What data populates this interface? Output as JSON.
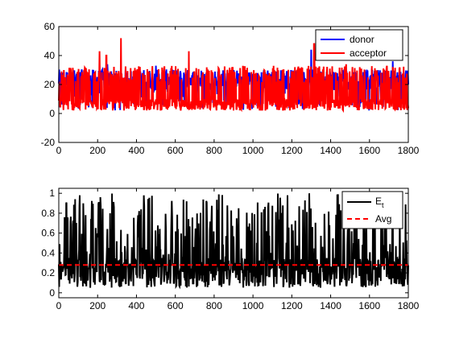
{
  "chart_data": [
    {
      "type": "line",
      "title": "",
      "xlabel": "",
      "ylabel": "",
      "xlim": [
        0,
        1800
      ],
      "ylim": [
        -20,
        60
      ],
      "x_ticks": [
        0,
        200,
        400,
        600,
        800,
        1000,
        1200,
        1400,
        1600,
        1800
      ],
      "y_ticks": [
        -20,
        0,
        20,
        40,
        60
      ],
      "legend": {
        "placement": "top-right"
      },
      "series": [
        {
          "name": "donor",
          "color": "#0000ff",
          "baseline": 22,
          "spread": 7,
          "peaks": [
            [
              250,
              34
            ],
            [
              500,
              33
            ],
            [
              1300,
              44
            ],
            [
              1720,
              36
            ]
          ]
        },
        {
          "name": "acceptor",
          "color": "#ff0000",
          "baseline": 6,
          "spread": 8,
          "peaks": [
            [
              210,
              43
            ],
            [
              245,
              40
            ],
            [
              320,
              52
            ],
            [
              670,
              43
            ],
            [
              1315,
              48
            ],
            [
              1480,
              34
            ]
          ]
        }
      ]
    },
    {
      "type": "line",
      "title": "",
      "xlabel": "",
      "ylabel": "",
      "xlim": [
        0,
        1800
      ],
      "ylim": [
        -0.05,
        1.05
      ],
      "x_ticks": [
        0,
        200,
        400,
        600,
        800,
        1000,
        1200,
        1400,
        1600,
        1800
      ],
      "y_ticks": [
        0,
        0.2,
        0.4,
        0.6,
        0.8,
        1
      ],
      "legend": {
        "placement": "top-right"
      },
      "series": [
        {
          "name": "E",
          "name_subscript": "t",
          "color": "#000000",
          "mean": 0.28,
          "min": 0,
          "max": 1
        },
        {
          "name": "Avg",
          "color": "#ff0000",
          "style": "dashed",
          "value": 0.28
        }
      ]
    }
  ]
}
